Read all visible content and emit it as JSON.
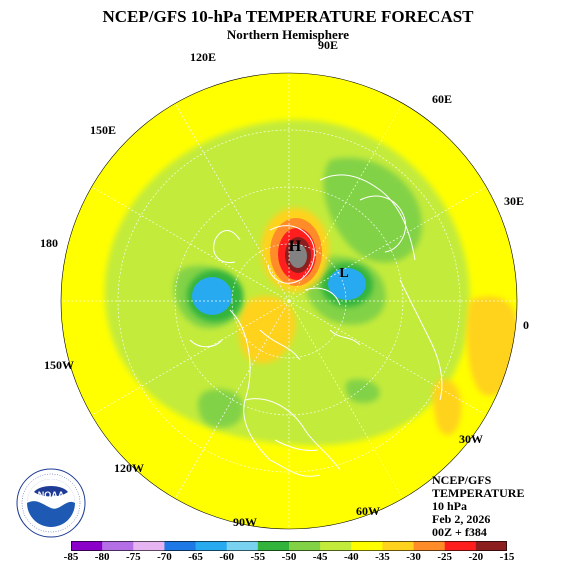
{
  "header": {
    "title": "NCEP/GFS 10-hPa TEMPERATURE FORECAST",
    "subtitle": "Northern Hemisphere"
  },
  "map": {
    "longitude_labels": [
      "90E",
      "120E",
      "60E",
      "150E",
      "30E",
      "180",
      "0",
      "150W",
      "30W",
      "120W",
      "90W",
      "60W"
    ],
    "high_marker": "H",
    "low_marker": "L"
  },
  "info": {
    "line1": "NCEP/GFS",
    "line2": "TEMPERATURE",
    "line3": "10 hPa",
    "line4": "Feb 2, 2026",
    "line5": "00Z + f384"
  },
  "logo": {
    "text": "NOAA",
    "ring_text": "NATIONAL OCEANIC AND ATMOSPHERIC ADMINISTRATION · U.S. DEPARTMENT OF COMMERCE"
  },
  "legend": {
    "ticks": [
      "-85",
      "-80",
      "-75",
      "-70",
      "-65",
      "-60",
      "-55",
      "-50",
      "-45",
      "-40",
      "-35",
      "-30",
      "-25",
      "-20",
      "-15"
    ],
    "colors": [
      "#8a00c8",
      "#b46ee6",
      "#e6b4f0",
      "#1e78e6",
      "#28aaf0",
      "#78d2f0",
      "#32b43c",
      "#82d246",
      "#c3eb3c",
      "#ffff00",
      "#ffd21e",
      "#ff8c28",
      "#ff1e1e",
      "#8c1e1e",
      "#828282"
    ]
  }
}
